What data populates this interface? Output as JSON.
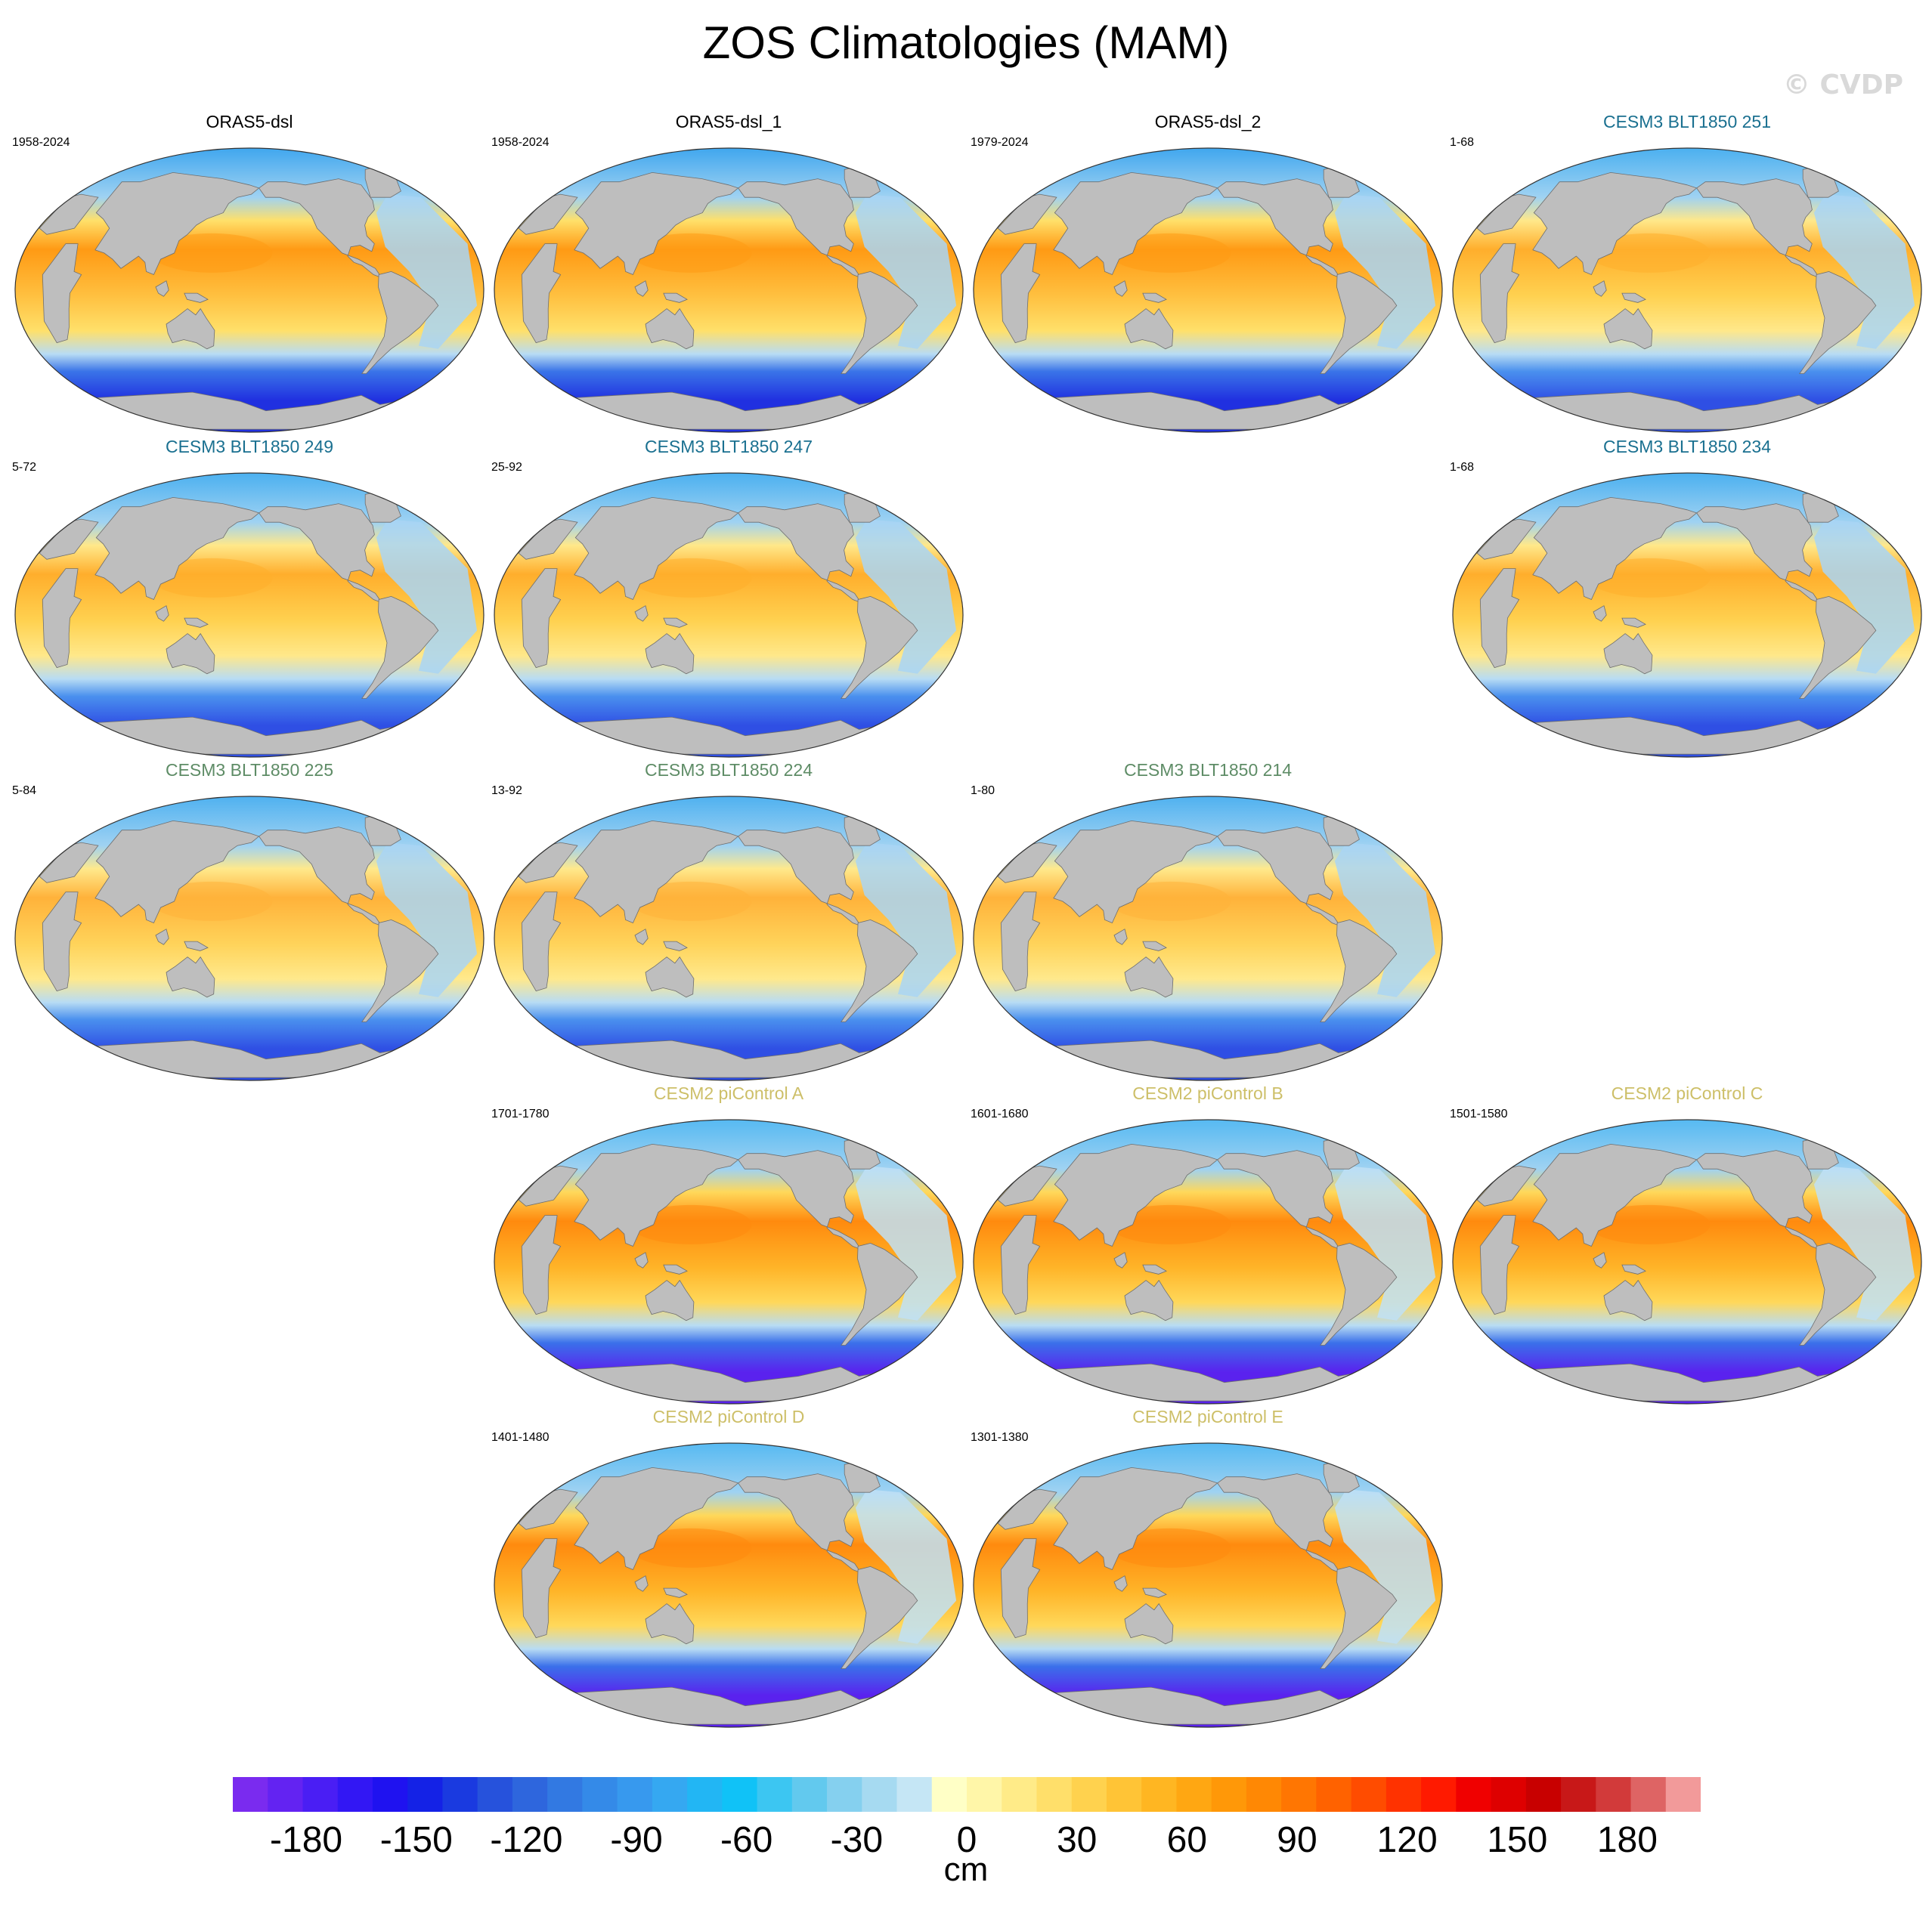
{
  "title": "ZOS Climatologies (MAM)",
  "copyright": "© CVDP",
  "colors": {
    "ocean_ref": "#1e63f0",
    "ocean_cesm3_blue": "#1a7090",
    "ocean_cesm3_green": "#5e8c66",
    "ocean_cesm2": "#cdbf68",
    "land": "#bebebe"
  },
  "panels": [
    {
      "title": "ORAS5-dsl",
      "years": "1958-2024",
      "group": "ref"
    },
    {
      "title": "ORAS5-dsl_1",
      "years": "1958-2024",
      "group": "ref"
    },
    {
      "title": "ORAS5-dsl_2",
      "years": "1979-2024",
      "group": "ref"
    },
    {
      "title": "CESM3 BLT1850 251",
      "years": "1-68",
      "group": "cesm3a"
    },
    {
      "title": "CESM3 BLT1850 249",
      "years": "5-72",
      "group": "cesm3a"
    },
    {
      "title": "CESM3 BLT1850 247",
      "years": "25-92",
      "group": "cesm3a"
    },
    {
      "title": "CESM3 BLT1850 234",
      "years": "1-68",
      "group": "cesm3a"
    },
    {
      "title": "CESM3 BLT1850 225",
      "years": "5-84",
      "group": "cesm3b"
    },
    {
      "title": "CESM3 BLT1850 224",
      "years": "13-92",
      "group": "cesm3b"
    },
    {
      "title": "CESM3 BLT1850 214",
      "years": "1-80",
      "group": "cesm3b"
    },
    {
      "title": "CESM2 piControl A",
      "years": "1701-1780",
      "group": "cesm2"
    },
    {
      "title": "CESM2 piControl B",
      "years": "1601-1680",
      "group": "cesm2"
    },
    {
      "title": "CESM2 piControl C",
      "years": "1501-1580",
      "group": "cesm2"
    },
    {
      "title": "CESM2 piControl D",
      "years": "1401-1480",
      "group": "cesm2"
    },
    {
      "title": "CESM2 piControl E",
      "years": "1301-1380",
      "group": "cesm2"
    }
  ],
  "colorbar": {
    "units": "cm",
    "min": -200,
    "max": 200,
    "tick_labels": [
      "-180",
      "-150",
      "-120",
      "-90",
      "-60",
      "-30",
      "0",
      "30",
      "60",
      "90",
      "120",
      "150",
      "180"
    ],
    "tick_values": [
      -180,
      -150,
      -120,
      -90,
      -60,
      -30,
      0,
      30,
      60,
      90,
      120,
      150,
      180
    ]
  }
}
